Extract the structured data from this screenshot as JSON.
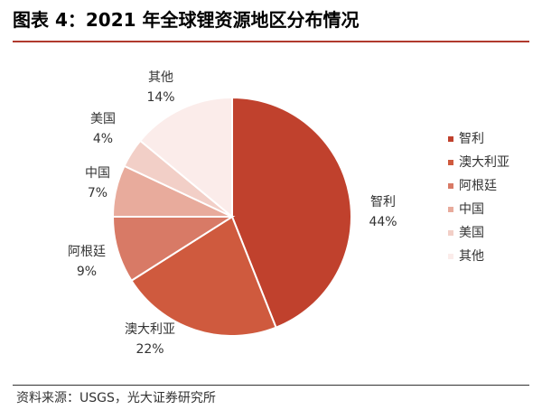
{
  "header": {
    "title": "图表 4：2021 年全球锂资源地区分布情况"
  },
  "footer": {
    "source": "资料来源：USGS，光大证券研究所"
  },
  "colors": {
    "accent": "#b03a2e",
    "slices": [
      "#c0412d",
      "#cf5a3e",
      "#d87a66",
      "#e8ab9c",
      "#f2cfc7",
      "#fbecea"
    ]
  },
  "chart_data": {
    "type": "pie",
    "title": "",
    "categories": [
      "智利",
      "澳大利亚",
      "阿根廷",
      "中国",
      "美国",
      "其他"
    ],
    "values": [
      44,
      22,
      9,
      7,
      4,
      14
    ],
    "value_labels": [
      "44%",
      "22%",
      "9%",
      "7%",
      "4%",
      "14%"
    ],
    "legend_position": "right",
    "start_angle": "12 o'clock",
    "direction": "clockwise"
  }
}
